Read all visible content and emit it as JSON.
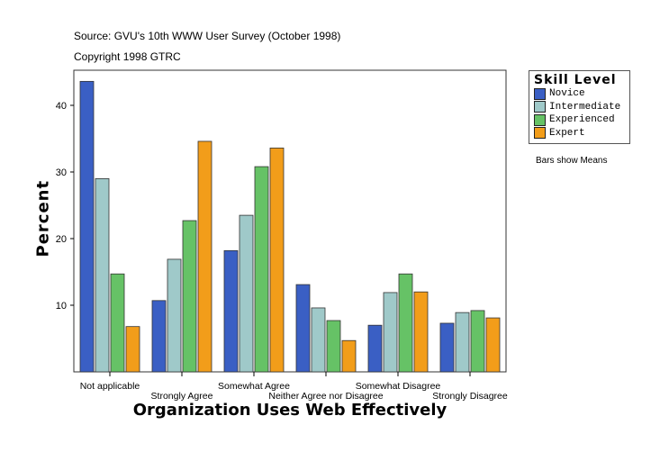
{
  "header": {
    "source": "Source: GVU's 10th WWW User Survey (October 1998)",
    "copyright": "Copyright 1998 GTRC"
  },
  "note": "Bars show Means",
  "chart_data": {
    "type": "bar",
    "xlabel": "Organization Uses Web Effectively",
    "ylabel": "Percent",
    "ylim": [
      0,
      45
    ],
    "yticks": [
      10,
      20,
      30,
      40
    ],
    "grid": false,
    "legend": {
      "title": "Skill Level",
      "placement": "right"
    },
    "categories": [
      "Not applicable",
      "Strongly Agree",
      "Somewhat Agree",
      "Neither Agree nor Disagree",
      "Somewhat Disagree",
      "Strongly Disagree"
    ],
    "series": [
      {
        "name": "Novice",
        "color": "#3a5fc4",
        "values": [
          43.6,
          10.7,
          18.2,
          13.1,
          7.0,
          7.3
        ]
      },
      {
        "name": "Intermediate",
        "color": "#9fc9c9",
        "values": [
          29.0,
          16.9,
          23.5,
          9.6,
          11.9,
          8.9
        ]
      },
      {
        "name": "Experienced",
        "color": "#66c266",
        "values": [
          14.7,
          22.7,
          30.8,
          7.7,
          14.7,
          9.2
        ]
      },
      {
        "name": "Expert",
        "color": "#f29d1a",
        "values": [
          6.8,
          34.6,
          33.6,
          4.7,
          12.0,
          8.1
        ]
      }
    ]
  }
}
